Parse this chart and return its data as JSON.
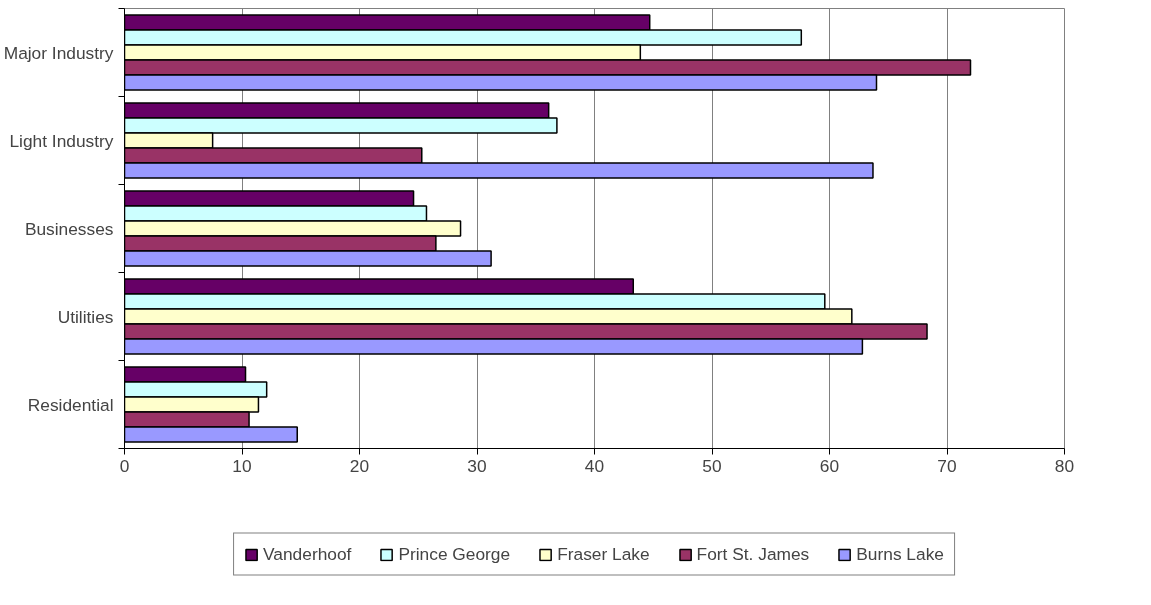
{
  "chart_data": {
    "type": "bar",
    "orientation": "horizontal",
    "categories": [
      "Major Industry",
      "Light Industry",
      "Businesses",
      "Utilities",
      "Residential"
    ],
    "series": [
      {
        "name": "Vanderhoof",
        "color": "#660066",
        "values": [
          44.7,
          36.1,
          24.6,
          43.3,
          10.3
        ]
      },
      {
        "name": "Prince George",
        "color": "#ccffff",
        "values": [
          57.6,
          36.8,
          25.7,
          59.6,
          12.1
        ]
      },
      {
        "name": "Fraser Lake",
        "color": "#ffffcc",
        "values": [
          43.9,
          7.5,
          28.6,
          61.9,
          11.4
        ]
      },
      {
        "name": "Fort St. James",
        "color": "#993366",
        "values": [
          72.0,
          25.3,
          26.5,
          68.3,
          10.6
        ]
      },
      {
        "name": "Burns Lake",
        "color": "#9999ff",
        "values": [
          64.0,
          63.7,
          31.2,
          62.8,
          14.7
        ]
      }
    ],
    "xlim": [
      0,
      80
    ],
    "xticks": [
      0,
      10,
      20,
      30,
      40,
      50,
      60,
      70,
      80
    ],
    "grid": "x",
    "legend": "bottom"
  }
}
